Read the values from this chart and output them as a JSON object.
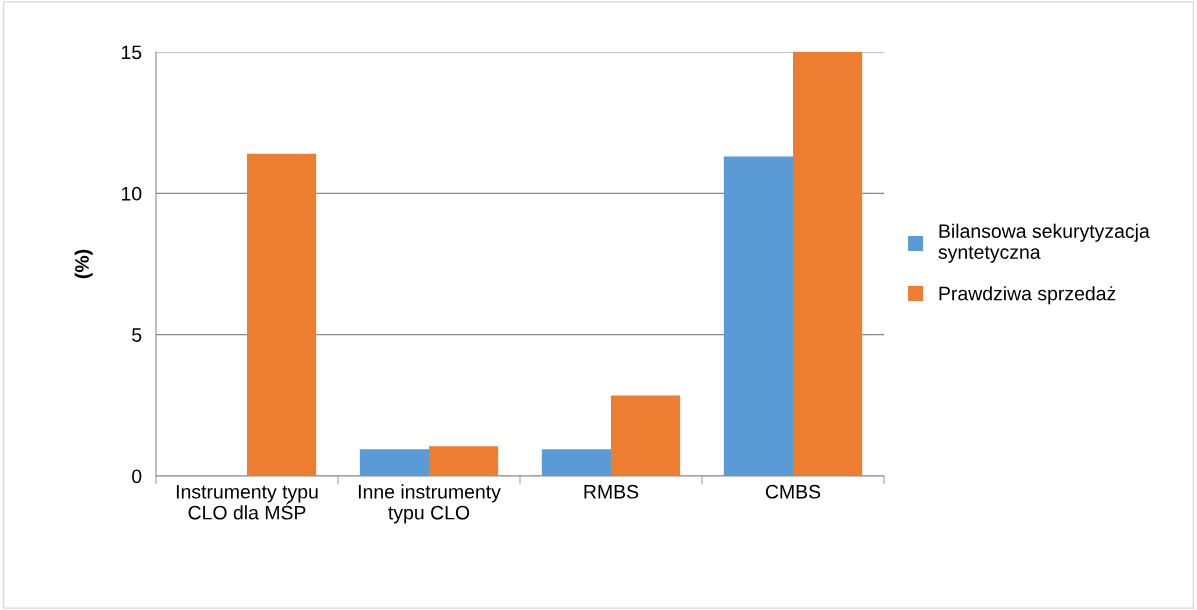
{
  "chart_data": {
    "type": "bar",
    "ylabel": "(%)",
    "categories": [
      "Instrumenty typu\nCLO dla MŚP",
      "Inne instrumenty\ntypu CLO",
      "RMBS",
      "CMBS"
    ],
    "series": [
      {
        "name": "Bilansowa sekurytyzacja\nsyntetyczna",
        "color": "#5b9bd5",
        "values": [
          null,
          0.95,
          0.95,
          11.3
        ]
      },
      {
        "name": "Prawdziwa sprzedaż",
        "color": "#ed7d31",
        "values": [
          11.4,
          1.05,
          2.85,
          15.0
        ]
      }
    ],
    "ylim": [
      0,
      15
    ],
    "yticks": [
      0,
      5,
      10,
      15
    ],
    "grid": "y",
    "legend": "right"
  }
}
